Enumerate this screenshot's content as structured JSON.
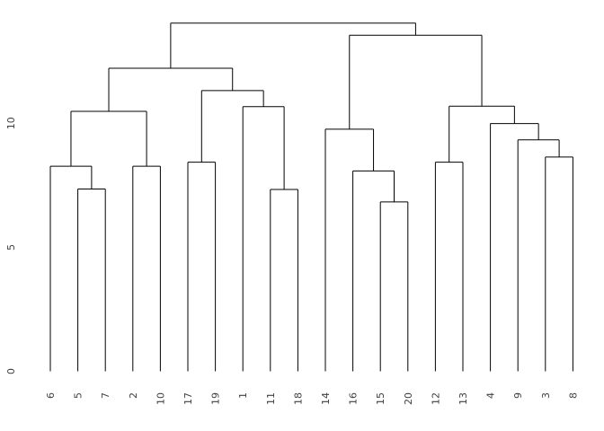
{
  "page": {
    "background_color": "#ffffff"
  },
  "chart_data": {
    "type": "dendrogram",
    "title": "",
    "xlabel": "",
    "ylabel": "",
    "legend": "none",
    "grid": false,
    "line_color": "#000000",
    "text_color": "#404040",
    "y_axis": {
      "ticks": [
        "0",
        "5",
        "10"
      ],
      "tick_values": [
        0,
        5,
        10
      ],
      "range": [
        0,
        14.6
      ],
      "label_rotation_deg": -90
    },
    "leaf_order": [
      "6",
      "5",
      "7",
      "2",
      "10",
      "17",
      "19",
      "1",
      "11",
      "18",
      "14",
      "16",
      "15",
      "20",
      "12",
      "13",
      "4",
      "9",
      "3",
      "8"
    ],
    "leaf_label_rotation_deg": -90,
    "tree": {
      "h": 14.04,
      "c": [
        {
          "h": 12.22,
          "c": [
            {
              "h": 10.48,
              "c": [
                {
                  "h": 8.27,
                  "c": [
                    {
                      "leaf": "6"
                    },
                    {
                      "h": 7.35,
                      "c": [
                        {
                          "leaf": "5"
                        },
                        {
                          "leaf": "7"
                        }
                      ]
                    }
                  ]
                },
                {
                  "h": 8.27,
                  "c": [
                    {
                      "leaf": "2"
                    },
                    {
                      "leaf": "10"
                    }
                  ]
                }
              ]
            },
            {
              "h": 11.32,
              "c": [
                {
                  "h": 8.43,
                  "c": [
                    {
                      "leaf": "17"
                    },
                    {
                      "leaf": "19"
                    }
                  ]
                },
                {
                  "h": 10.67,
                  "c": [
                    {
                      "leaf": "1"
                    },
                    {
                      "h": 7.33,
                      "c": [
                        {
                          "leaf": "11"
                        },
                        {
                          "leaf": "18"
                        }
                      ]
                    }
                  ]
                }
              ]
            }
          ]
        },
        {
          "h": 13.55,
          "c": [
            {
              "h": 9.76,
              "c": [
                {
                  "leaf": "14"
                },
                {
                  "h": 8.08,
                  "c": [
                    {
                      "leaf": "16"
                    },
                    {
                      "h": 6.83,
                      "c": [
                        {
                          "leaf": "15"
                        },
                        {
                          "leaf": "20"
                        }
                      ]
                    }
                  ]
                }
              ]
            },
            {
              "h": 10.69,
              "c": [
                {
                  "h": 8.43,
                  "c": [
                    {
                      "leaf": "12"
                    },
                    {
                      "leaf": "13"
                    }
                  ]
                },
                {
                  "h": 9.99,
                  "c": [
                    {
                      "leaf": "4"
                    },
                    {
                      "h": 9.33,
                      "c": [
                        {
                          "leaf": "9"
                        },
                        {
                          "h": 8.64,
                          "c": [
                            {
                              "leaf": "3"
                            },
                            {
                              "leaf": "8"
                            }
                          ]
                        }
                      ]
                    }
                  ]
                }
              ]
            }
          ]
        }
      ]
    }
  }
}
